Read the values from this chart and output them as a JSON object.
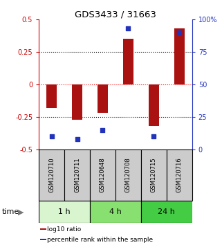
{
  "title": "GDS3433 / 31663",
  "samples": [
    "GSM120710",
    "GSM120711",
    "GSM120648",
    "GSM120708",
    "GSM120715",
    "GSM120716"
  ],
  "log10_ratio": [
    -0.18,
    -0.27,
    -0.22,
    0.35,
    -0.32,
    0.43
  ],
  "percentile_rank": [
    10,
    8,
    15,
    93,
    10,
    90
  ],
  "ylim_left": [
    -0.5,
    0.5
  ],
  "ylim_right": [
    0,
    100
  ],
  "yticks_left": [
    -0.5,
    -0.25,
    0,
    0.25,
    0.5
  ],
  "yticks_right": [
    0,
    25,
    50,
    75,
    100
  ],
  "ytick_labels_right": [
    "0",
    "25",
    "50",
    "75",
    "100%"
  ],
  "hlines_black": [
    0.25,
    -0.25
  ],
  "hline_red": 0,
  "bar_color": "#aa1111",
  "square_color": "#2233bb",
  "time_groups": [
    {
      "label": "1 h",
      "start": 0,
      "end": 2,
      "color": "#d8f5d0"
    },
    {
      "label": "4 h",
      "start": 2,
      "end": 4,
      "color": "#88e070"
    },
    {
      "label": "24 h",
      "start": 4,
      "end": 6,
      "color": "#44cc44"
    }
  ],
  "legend_items": [
    {
      "label": "log10 ratio",
      "color": "#aa1111"
    },
    {
      "label": "percentile rank within the sample",
      "color": "#2233bb"
    }
  ],
  "time_label": "time",
  "left_axis_color": "#cc0000",
  "right_axis_color": "#2233bb",
  "bar_width": 0.4,
  "square_size": 25,
  "sample_box_color": "#cccccc"
}
